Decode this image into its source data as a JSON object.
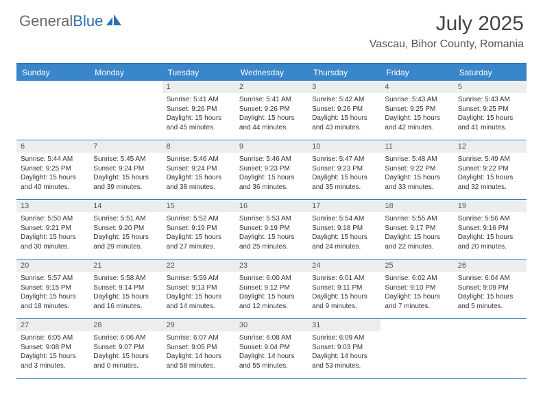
{
  "brand": {
    "general": "General",
    "blue": "Blue"
  },
  "title": "July 2025",
  "location": "Vascau, Bihor County, Romania",
  "colors": {
    "header_bg": "#3a86ca",
    "border": "#2c78c0",
    "daynum_bg": "#eceded",
    "text": "#333333",
    "title_text": "#444444"
  },
  "day_names": [
    "Sunday",
    "Monday",
    "Tuesday",
    "Wednesday",
    "Thursday",
    "Friday",
    "Saturday"
  ],
  "weeks": [
    [
      {
        "n": "",
        "sr": "",
        "ss": "",
        "dl": ""
      },
      {
        "n": "",
        "sr": "",
        "ss": "",
        "dl": ""
      },
      {
        "n": "1",
        "sr": "Sunrise: 5:41 AM",
        "ss": "Sunset: 9:26 PM",
        "dl": "Daylight: 15 hours and 45 minutes."
      },
      {
        "n": "2",
        "sr": "Sunrise: 5:41 AM",
        "ss": "Sunset: 9:26 PM",
        "dl": "Daylight: 15 hours and 44 minutes."
      },
      {
        "n": "3",
        "sr": "Sunrise: 5:42 AM",
        "ss": "Sunset: 9:26 PM",
        "dl": "Daylight: 15 hours and 43 minutes."
      },
      {
        "n": "4",
        "sr": "Sunrise: 5:43 AM",
        "ss": "Sunset: 9:25 PM",
        "dl": "Daylight: 15 hours and 42 minutes."
      },
      {
        "n": "5",
        "sr": "Sunrise: 5:43 AM",
        "ss": "Sunset: 9:25 PM",
        "dl": "Daylight: 15 hours and 41 minutes."
      }
    ],
    [
      {
        "n": "6",
        "sr": "Sunrise: 5:44 AM",
        "ss": "Sunset: 9:25 PM",
        "dl": "Daylight: 15 hours and 40 minutes."
      },
      {
        "n": "7",
        "sr": "Sunrise: 5:45 AM",
        "ss": "Sunset: 9:24 PM",
        "dl": "Daylight: 15 hours and 39 minutes."
      },
      {
        "n": "8",
        "sr": "Sunrise: 5:46 AM",
        "ss": "Sunset: 9:24 PM",
        "dl": "Daylight: 15 hours and 38 minutes."
      },
      {
        "n": "9",
        "sr": "Sunrise: 5:46 AM",
        "ss": "Sunset: 9:23 PM",
        "dl": "Daylight: 15 hours and 36 minutes."
      },
      {
        "n": "10",
        "sr": "Sunrise: 5:47 AM",
        "ss": "Sunset: 9:23 PM",
        "dl": "Daylight: 15 hours and 35 minutes."
      },
      {
        "n": "11",
        "sr": "Sunrise: 5:48 AM",
        "ss": "Sunset: 9:22 PM",
        "dl": "Daylight: 15 hours and 33 minutes."
      },
      {
        "n": "12",
        "sr": "Sunrise: 5:49 AM",
        "ss": "Sunset: 9:22 PM",
        "dl": "Daylight: 15 hours and 32 minutes."
      }
    ],
    [
      {
        "n": "13",
        "sr": "Sunrise: 5:50 AM",
        "ss": "Sunset: 9:21 PM",
        "dl": "Daylight: 15 hours and 30 minutes."
      },
      {
        "n": "14",
        "sr": "Sunrise: 5:51 AM",
        "ss": "Sunset: 9:20 PM",
        "dl": "Daylight: 15 hours and 29 minutes."
      },
      {
        "n": "15",
        "sr": "Sunrise: 5:52 AM",
        "ss": "Sunset: 9:19 PM",
        "dl": "Daylight: 15 hours and 27 minutes."
      },
      {
        "n": "16",
        "sr": "Sunrise: 5:53 AM",
        "ss": "Sunset: 9:19 PM",
        "dl": "Daylight: 15 hours and 25 minutes."
      },
      {
        "n": "17",
        "sr": "Sunrise: 5:54 AM",
        "ss": "Sunset: 9:18 PM",
        "dl": "Daylight: 15 hours and 24 minutes."
      },
      {
        "n": "18",
        "sr": "Sunrise: 5:55 AM",
        "ss": "Sunset: 9:17 PM",
        "dl": "Daylight: 15 hours and 22 minutes."
      },
      {
        "n": "19",
        "sr": "Sunrise: 5:56 AM",
        "ss": "Sunset: 9:16 PM",
        "dl": "Daylight: 15 hours and 20 minutes."
      }
    ],
    [
      {
        "n": "20",
        "sr": "Sunrise: 5:57 AM",
        "ss": "Sunset: 9:15 PM",
        "dl": "Daylight: 15 hours and 18 minutes."
      },
      {
        "n": "21",
        "sr": "Sunrise: 5:58 AM",
        "ss": "Sunset: 9:14 PM",
        "dl": "Daylight: 15 hours and 16 minutes."
      },
      {
        "n": "22",
        "sr": "Sunrise: 5:59 AM",
        "ss": "Sunset: 9:13 PM",
        "dl": "Daylight: 15 hours and 14 minutes."
      },
      {
        "n": "23",
        "sr": "Sunrise: 6:00 AM",
        "ss": "Sunset: 9:12 PM",
        "dl": "Daylight: 15 hours and 12 minutes."
      },
      {
        "n": "24",
        "sr": "Sunrise: 6:01 AM",
        "ss": "Sunset: 9:11 PM",
        "dl": "Daylight: 15 hours and 9 minutes."
      },
      {
        "n": "25",
        "sr": "Sunrise: 6:02 AM",
        "ss": "Sunset: 9:10 PM",
        "dl": "Daylight: 15 hours and 7 minutes."
      },
      {
        "n": "26",
        "sr": "Sunrise: 6:04 AM",
        "ss": "Sunset: 9:09 PM",
        "dl": "Daylight: 15 hours and 5 minutes."
      }
    ],
    [
      {
        "n": "27",
        "sr": "Sunrise: 6:05 AM",
        "ss": "Sunset: 9:08 PM",
        "dl": "Daylight: 15 hours and 3 minutes."
      },
      {
        "n": "28",
        "sr": "Sunrise: 6:06 AM",
        "ss": "Sunset: 9:07 PM",
        "dl": "Daylight: 15 hours and 0 minutes."
      },
      {
        "n": "29",
        "sr": "Sunrise: 6:07 AM",
        "ss": "Sunset: 9:05 PM",
        "dl": "Daylight: 14 hours and 58 minutes."
      },
      {
        "n": "30",
        "sr": "Sunrise: 6:08 AM",
        "ss": "Sunset: 9:04 PM",
        "dl": "Daylight: 14 hours and 55 minutes."
      },
      {
        "n": "31",
        "sr": "Sunrise: 6:09 AM",
        "ss": "Sunset: 9:03 PM",
        "dl": "Daylight: 14 hours and 53 minutes."
      },
      {
        "n": "",
        "sr": "",
        "ss": "",
        "dl": ""
      },
      {
        "n": "",
        "sr": "",
        "ss": "",
        "dl": ""
      }
    ]
  ]
}
